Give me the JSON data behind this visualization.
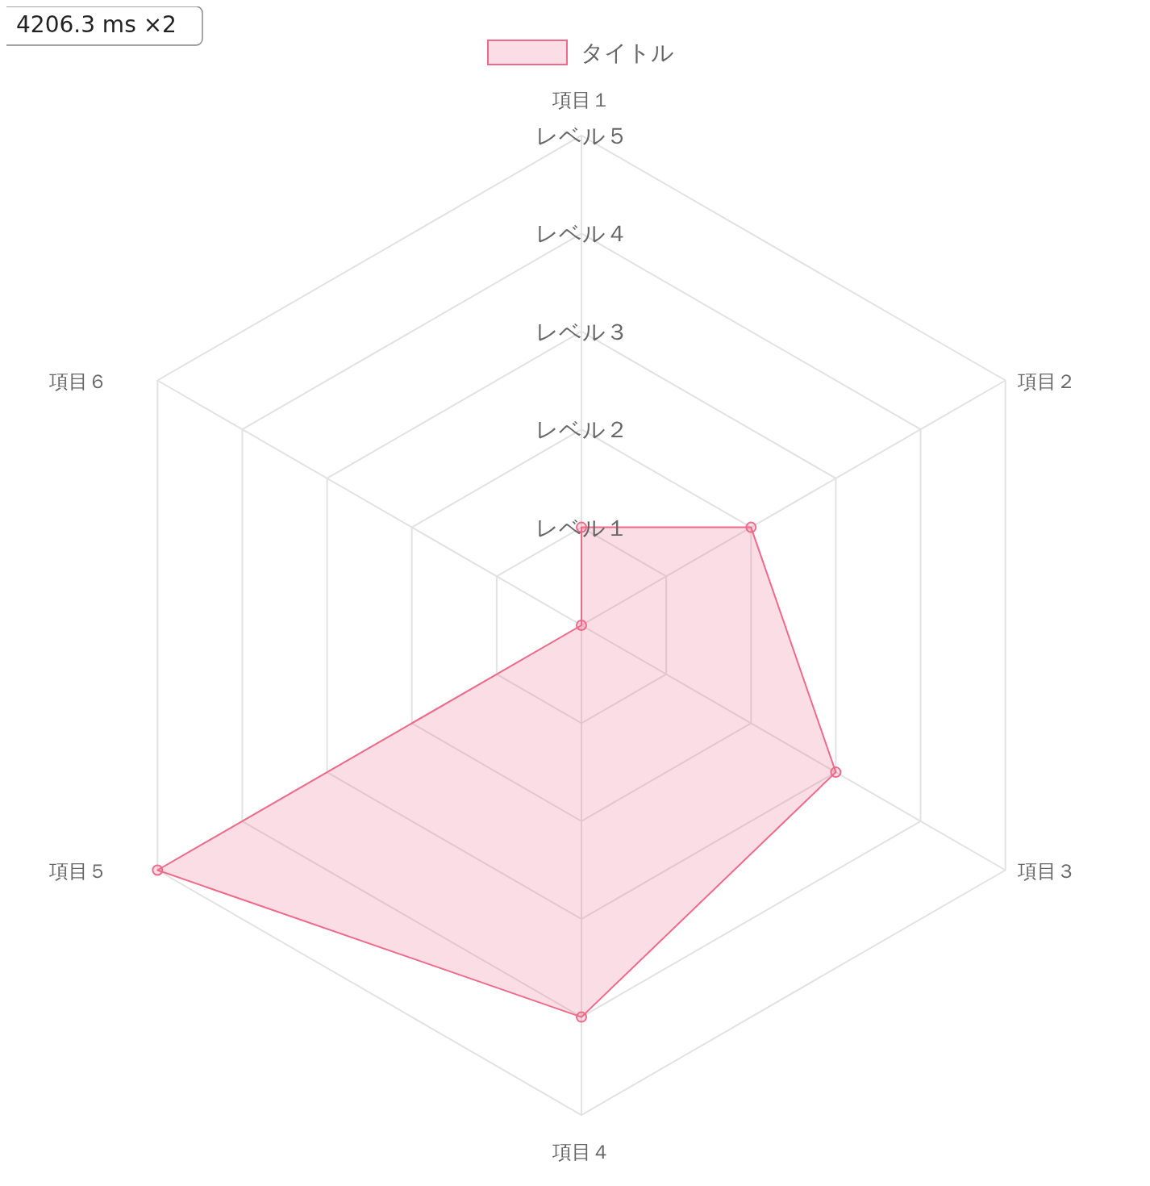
{
  "chart_data": {
    "type": "radar",
    "categories": [
      "項目１",
      "項目２",
      "項目３",
      "項目４",
      "項目５",
      "項目６"
    ],
    "series": [
      {
        "name": "タイトル",
        "color": "#ee6a8a",
        "values": [
          1,
          2,
          3,
          4,
          5,
          0
        ]
      }
    ],
    "ylim": [
      0,
      5
    ],
    "yticks": [
      {
        "value": 1,
        "label": "レベル１"
      },
      {
        "value": 2,
        "label": "レベル２"
      },
      {
        "value": 3,
        "label": "レベル３"
      },
      {
        "value": 4,
        "label": "レベル４"
      },
      {
        "value": 5,
        "label": "レベル５"
      }
    ],
    "grid": true,
    "legend": "top",
    "marker": "circle",
    "annotations": [
      "4206.3 ms ×2"
    ]
  }
}
